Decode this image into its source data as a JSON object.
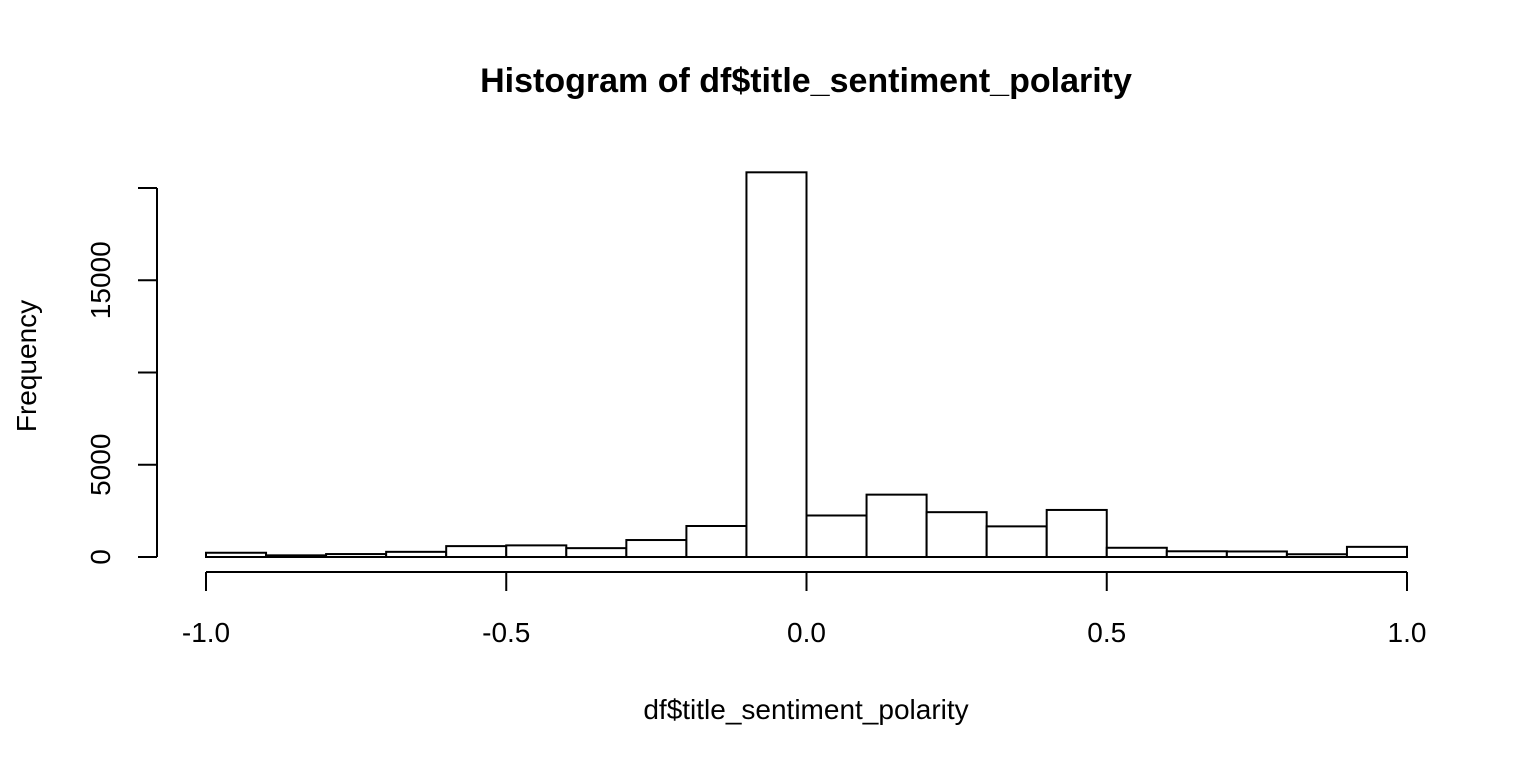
{
  "chart_data": {
    "type": "bar",
    "title": "Histogram of df$title_sentiment_polarity",
    "xlabel": "df$title_sentiment_polarity",
    "ylabel": "Frequency",
    "bin_edges": [
      -1.0,
      -0.9,
      -0.8,
      -0.7,
      -0.6,
      -0.5,
      -0.4,
      -0.3,
      -0.2,
      -0.1,
      0.0,
      0.1,
      0.2,
      0.3,
      0.4,
      0.5,
      0.6,
      0.7,
      0.8,
      0.9,
      1.0
    ],
    "values": [
      230,
      90,
      160,
      280,
      590,
      630,
      480,
      920,
      1680,
      20850,
      2250,
      3380,
      2430,
      1660,
      2550,
      500,
      310,
      300,
      150,
      550
    ],
    "xlim": [
      -1.0,
      1.0
    ],
    "ylim": [
      0,
      20850
    ],
    "x_ticks": [
      -1.0,
      -0.5,
      0.0,
      0.5,
      1.0
    ],
    "x_tick_labels": [
      "-1.0",
      "-0.5",
      "0.0",
      "0.5",
      "1.0"
    ],
    "y_ticks": [
      0,
      5000,
      10000,
      15000,
      20000
    ],
    "y_tick_labels": [
      "0",
      "5000",
      "",
      "15000",
      ""
    ],
    "grid": false,
    "legend": "none",
    "bar_fill": "#ffffff",
    "bar_stroke": "#000000"
  }
}
